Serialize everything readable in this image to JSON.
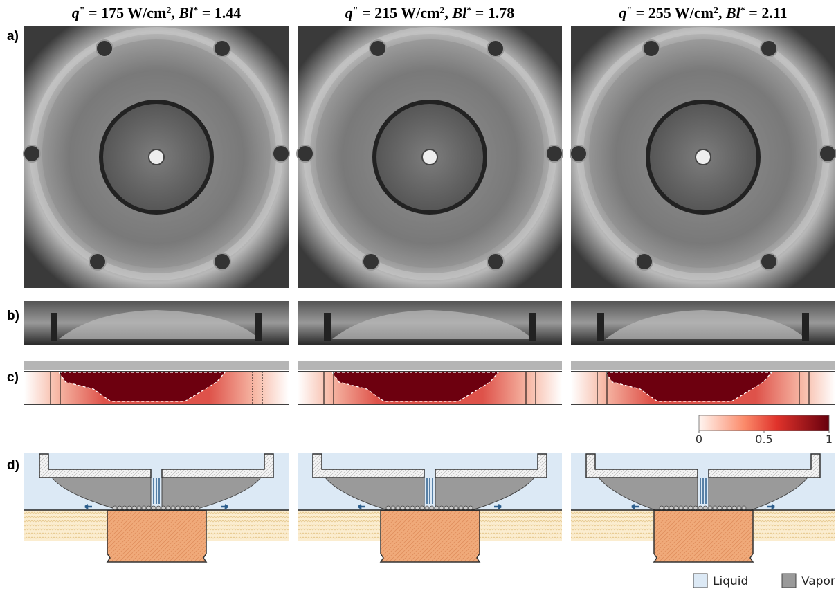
{
  "columns": [
    {
      "title": [
        {
          "text": "q",
          "italic": true
        },
        {
          "text": "\"",
          "sup": true
        },
        {
          "text": " = 175 W/cm"
        },
        {
          "text": "2",
          "sup": true
        },
        {
          "text": ", "
        },
        {
          "text": "Bl",
          "italic": true
        },
        {
          "text": "*",
          "sup": true
        },
        {
          "text": " = 1.44"
        }
      ]
    },
    {
      "title": [
        {
          "text": "q",
          "italic": true
        },
        {
          "text": "\"",
          "sup": true
        },
        {
          "text": " = 215 W/cm"
        },
        {
          "text": "2",
          "sup": true
        },
        {
          "text": ", "
        },
        {
          "text": "Bl",
          "italic": true
        },
        {
          "text": "*",
          "sup": true
        },
        {
          "text": " = 1.78"
        }
      ]
    },
    {
      "title": [
        {
          "text": "q",
          "italic": true
        },
        {
          "text": "\"",
          "sup": true
        },
        {
          "text": " = 255 W/cm"
        },
        {
          "text": "2",
          "sup": true
        },
        {
          "text": ", "
        },
        {
          "text": "Bl",
          "italic": true
        },
        {
          "text": "*",
          "sup": true
        },
        {
          "text": " = 2.11"
        }
      ]
    }
  ],
  "row_labels": [
    "a)",
    "b)",
    "c)",
    "d)"
  ],
  "colorbar": {
    "lim": [
      0,
      1
    ],
    "ticks": [
      0,
      0.5,
      1
    ]
  },
  "legend": [
    {
      "label": "Liquid",
      "color": "#dce9f5"
    },
    {
      "label": "Vapor",
      "color": "#9a9a9a"
    }
  ]
}
